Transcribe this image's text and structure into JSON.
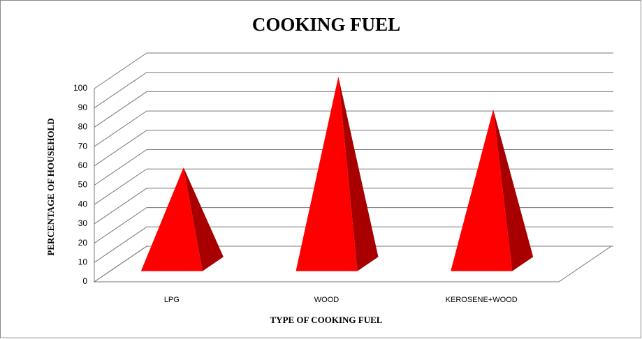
{
  "chart_data": {
    "type": "bar3d_pyramid",
    "title": "COOKING FUEL",
    "x_label": "TYPE OF COOKING FUEL",
    "y_label": "PERCENTAGE OF HOUSEHOLD",
    "categories": [
      "LPG",
      "WOOD",
      "KEROSENE+WOOD"
    ],
    "values": [
      50,
      97,
      80
    ],
    "color": "#ff0000",
    "ylim": [
      0,
      100
    ],
    "yticks": [
      0,
      10,
      20,
      30,
      40,
      50,
      60,
      70,
      80,
      90,
      100
    ],
    "grid": true
  }
}
